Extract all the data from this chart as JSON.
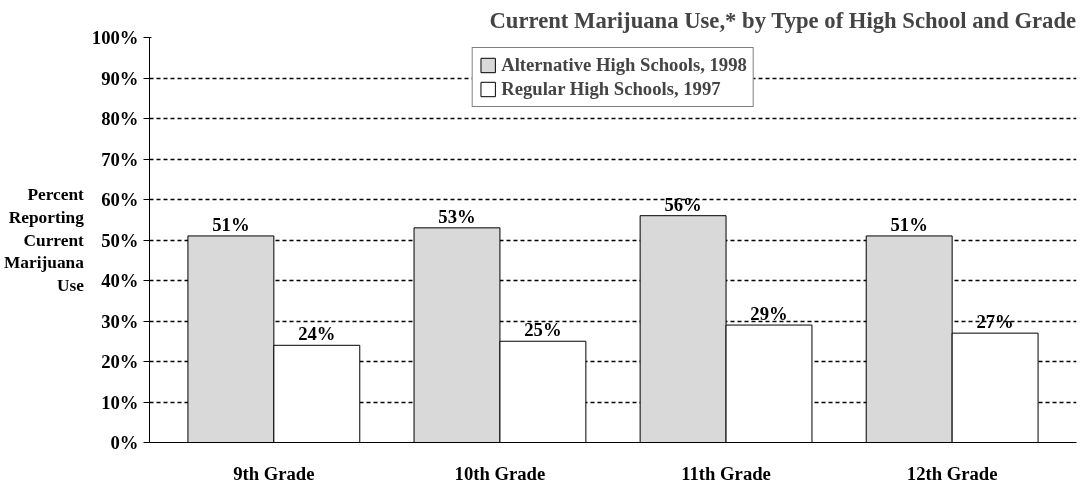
{
  "chart_data": {
    "type": "bar",
    "title": "Current Marijuana Use,* by Type of High School and Grade",
    "ylabel": "Percent Reporting Current Marijuana Use",
    "categories": [
      "9th Grade",
      "10th Grade",
      "11th Grade",
      "12th Grade"
    ],
    "series": [
      {
        "name": "Alternative High Schools, 1998",
        "color": "#d9d9d9",
        "values": [
          51,
          53,
          56,
          51
        ]
      },
      {
        "name": "Regular High Schools, 1997",
        "color": "#ffffff",
        "values": [
          24,
          25,
          29,
          27
        ]
      }
    ],
    "ylim": [
      0,
      100
    ],
    "yticks": [
      {
        "value": 0,
        "label": "0%"
      },
      {
        "value": 10,
        "label": "10%"
      },
      {
        "value": 20,
        "label": "20%"
      },
      {
        "value": 30,
        "label": "30%"
      },
      {
        "value": 40,
        "label": "40%"
      },
      {
        "value": 50,
        "label": "50%"
      },
      {
        "value": 60,
        "label": "60%"
      },
      {
        "value": 70,
        "label": "70%"
      },
      {
        "value": 80,
        "label": "80%"
      },
      {
        "value": 90,
        "label": "90%"
      },
      {
        "value": 100,
        "label": "100%"
      }
    ],
    "value_labels": [
      [
        "51%",
        "53%",
        "56%",
        "51%"
      ],
      [
        "24%",
        "25%",
        "29%",
        "27%"
      ]
    ],
    "grid": "y",
    "legend": "top"
  }
}
